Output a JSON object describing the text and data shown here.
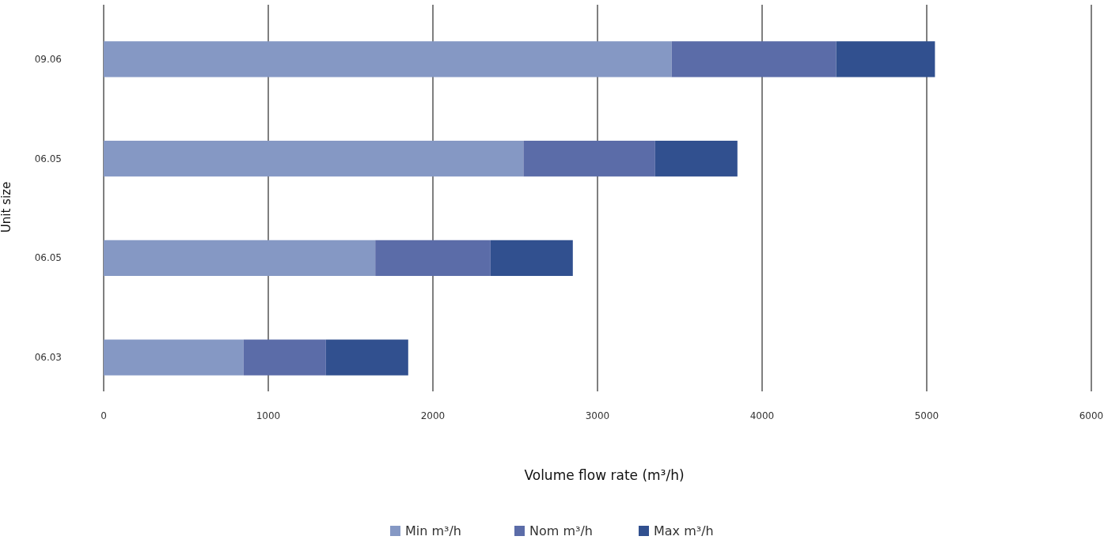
{
  "chart_data": {
    "type": "bar",
    "orientation": "horizontal",
    "stacked": true,
    "xlabel": "Volume flow rate (m³/h)",
    "ylabel": "Unit size",
    "categories": [
      "09.06",
      "06.05",
      "06.05",
      "06.03"
    ],
    "series": [
      {
        "name": "Min m³/h",
        "color": "#8598c4",
        "values": [
          3450,
          2550,
          1650,
          850
        ]
      },
      {
        "name": "Nom m³/h",
        "color": "#5b6ca8",
        "values": [
          1000,
          800,
          700,
          500
        ]
      },
      {
        "name": "Max m³/h",
        "color": "#31508f",
        "values": [
          600,
          500,
          500,
          500
        ]
      }
    ],
    "xlim": [
      0,
      6000
    ],
    "xticks": [
      0,
      1000,
      2000,
      3000,
      4000,
      5000,
      6000
    ],
    "grid": "x",
    "legend": "bottom"
  }
}
